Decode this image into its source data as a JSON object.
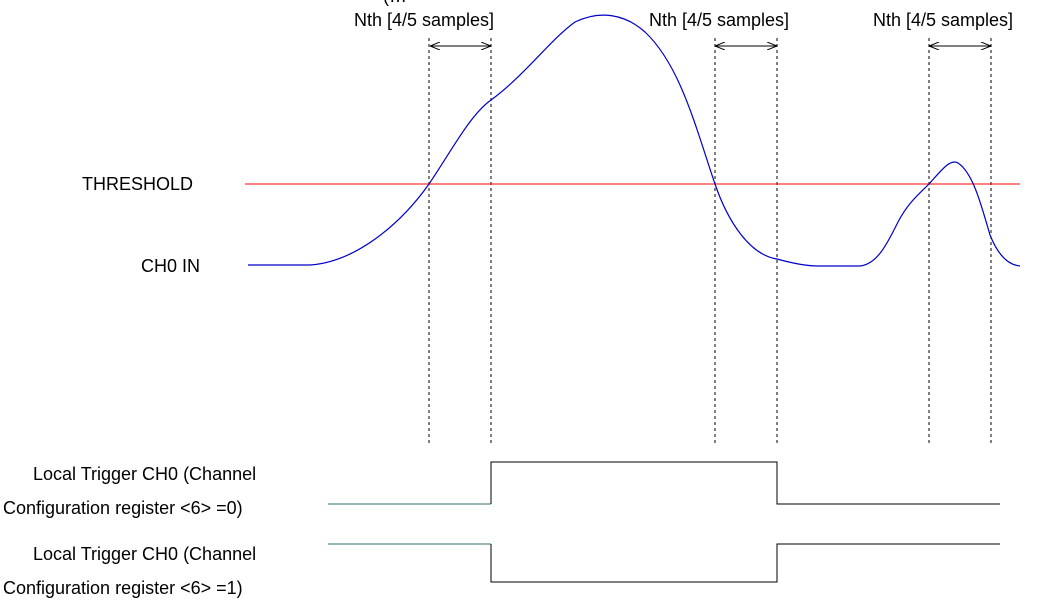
{
  "partial_top_label": "(…",
  "window_labels": [
    "Nth [4/5 samples]",
    "Nth [4/5 samples]",
    "Nth [4/5 samples]"
  ],
  "threshold_label": "THRESHOLD",
  "input_label": "CH0 IN",
  "trigger0": {
    "line1": "Local Trigger CH0 (Channel",
    "line2": "Configuration register <6> =0)"
  },
  "trigger1": {
    "line1": "Local Trigger CH0 (Channel",
    "line2": "Configuration register <6> =1)"
  },
  "colors": {
    "signal": "#0000cc",
    "threshold": "#ff0000",
    "trigger_lead": "#2f6f6f",
    "trigger": "#000000",
    "marker": "#000000"
  }
}
